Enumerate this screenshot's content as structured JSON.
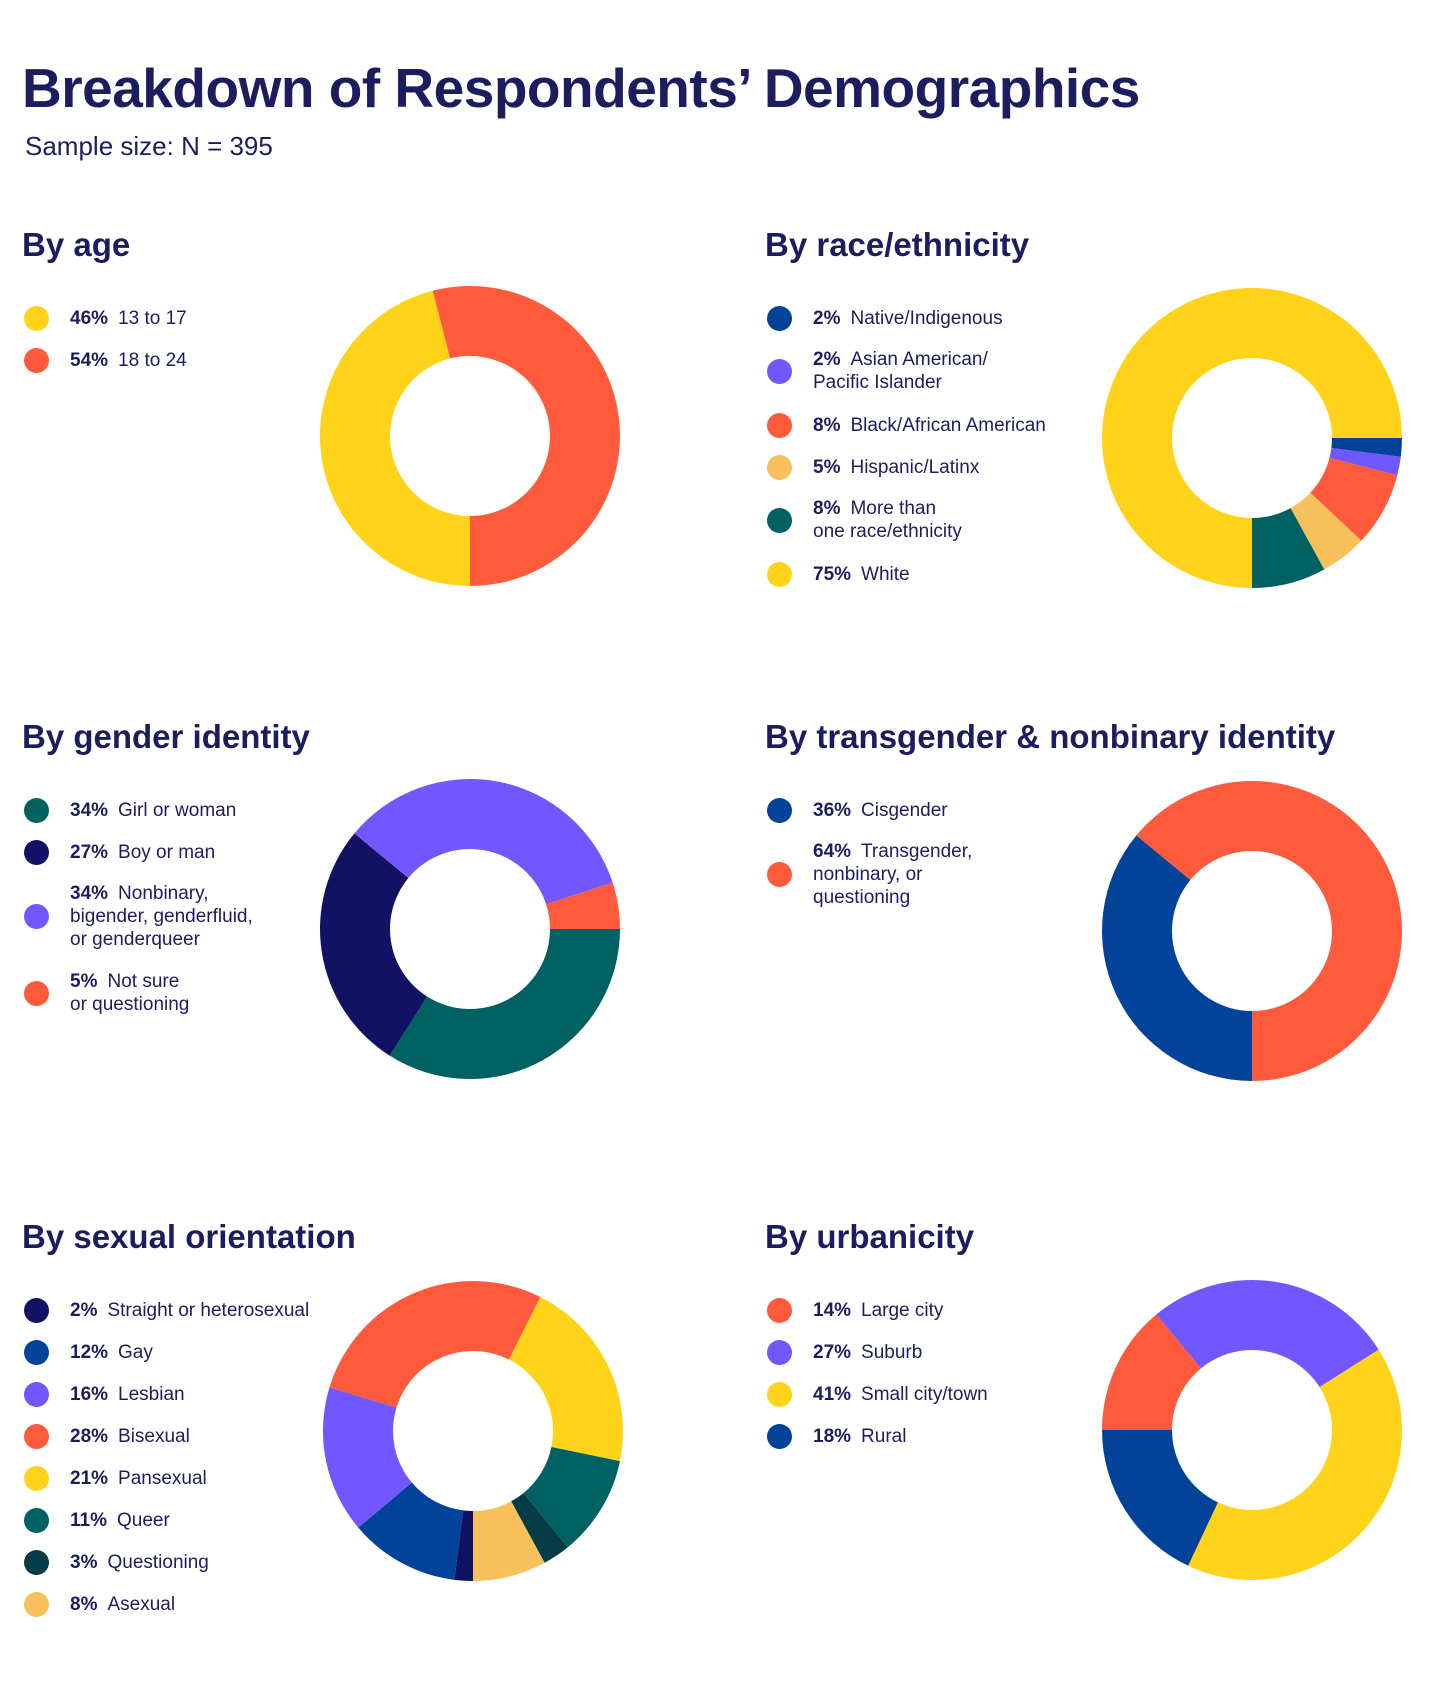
{
  "title": "Breakdown of Respondents’ Demographics",
  "subtitle": "Sample size: N = 395",
  "colors": {
    "yellow": "#fed319",
    "red": "#ff5a3c",
    "navy": "#121264",
    "blue": "#02439a",
    "purple": "#7256fe",
    "teal": "#006062",
    "dark_teal": "#053c47",
    "light_orange": "#f8c05a"
  },
  "chart_data": [
    {
      "type": "pie",
      "donut": true,
      "title": "By age",
      "slices": [
        {
          "label": "13 to 17",
          "pct_label": "46%",
          "value": 46,
          "color": "#fed319"
        },
        {
          "label": "18 to 24",
          "pct_label": "54%",
          "value": 54,
          "color": "#ff5a3c"
        }
      ]
    },
    {
      "type": "pie",
      "donut": true,
      "title": "By race/ethnicity",
      "slices": [
        {
          "label": "Native/Indigenous",
          "pct_label": "2%",
          "value": 2,
          "color": "#02439a"
        },
        {
          "label": "Asian American/\nPacific Islander",
          "pct_label": "2%",
          "value": 2,
          "color": "#7256fe"
        },
        {
          "label": "Black/African American",
          "pct_label": "8%",
          "value": 8,
          "color": "#ff5a3c"
        },
        {
          "label": "Hispanic/Latinx",
          "pct_label": "5%",
          "value": 5,
          "color": "#f8c05a"
        },
        {
          "label": "More than\none race/ethnicity",
          "pct_label": "8%",
          "value": 8,
          "color": "#006062"
        },
        {
          "label": "White",
          "pct_label": "75%",
          "value": 75,
          "color": "#fed319"
        }
      ]
    },
    {
      "type": "pie",
      "donut": true,
      "title": "By gender identity",
      "slices": [
        {
          "label": "Girl or woman",
          "pct_label": "34%",
          "value": 34,
          "color": "#006062"
        },
        {
          "label": "Boy or man",
          "pct_label": "27%",
          "value": 27,
          "color": "#121264"
        },
        {
          "label": "Nonbinary,\nbigender, genderfluid,\nor genderqueer",
          "pct_label": "34%",
          "value": 34,
          "color": "#7256fe"
        },
        {
          "label": "Not sure\nor questioning",
          "pct_label": "5%",
          "value": 5,
          "color": "#ff5a3c"
        }
      ]
    },
    {
      "type": "pie",
      "donut": true,
      "title": "By transgender & nonbinary identity",
      "slices": [
        {
          "label": "Cisgender",
          "pct_label": "36%",
          "value": 36,
          "color": "#02439a"
        },
        {
          "label": "Transgender,\nnonbinary, or\nquestioning",
          "pct_label": "64%",
          "value": 64,
          "color": "#ff5a3c"
        }
      ]
    },
    {
      "type": "pie",
      "donut": true,
      "title": "By sexual orientation",
      "slices": [
        {
          "label": "Straight or heterosexual",
          "pct_label": "2%",
          "value": 2,
          "color": "#121264"
        },
        {
          "label": "Gay",
          "pct_label": "12%",
          "value": 12,
          "color": "#02439a"
        },
        {
          "label": "Lesbian",
          "pct_label": "16%",
          "value": 16,
          "color": "#7256fe"
        },
        {
          "label": "Bisexual",
          "pct_label": "28%",
          "value": 28,
          "color": "#ff5a3c"
        },
        {
          "label": "Pansexual",
          "pct_label": "21%",
          "value": 21,
          "color": "#fed319"
        },
        {
          "label": "Queer",
          "pct_label": "11%",
          "value": 11,
          "color": "#006062"
        },
        {
          "label": "Questioning",
          "pct_label": "3%",
          "value": 3,
          "color": "#053c47"
        },
        {
          "label": "Asexual",
          "pct_label": "8%",
          "value": 8,
          "color": "#f8c05a"
        }
      ]
    },
    {
      "type": "pie",
      "donut": true,
      "title": "By urbanicity",
      "slices": [
        {
          "label": "Large city",
          "pct_label": "14%",
          "value": 14,
          "color": "#ff5a3c"
        },
        {
          "label": "Suburb",
          "pct_label": "27%",
          "value": 27,
          "color": "#7256fe"
        },
        {
          "label": "Small city/town",
          "pct_label": "41%",
          "value": 41,
          "color": "#fed319"
        },
        {
          "label": "Rural",
          "pct_label": "18%",
          "value": 18,
          "color": "#02439a"
        }
      ]
    }
  ]
}
